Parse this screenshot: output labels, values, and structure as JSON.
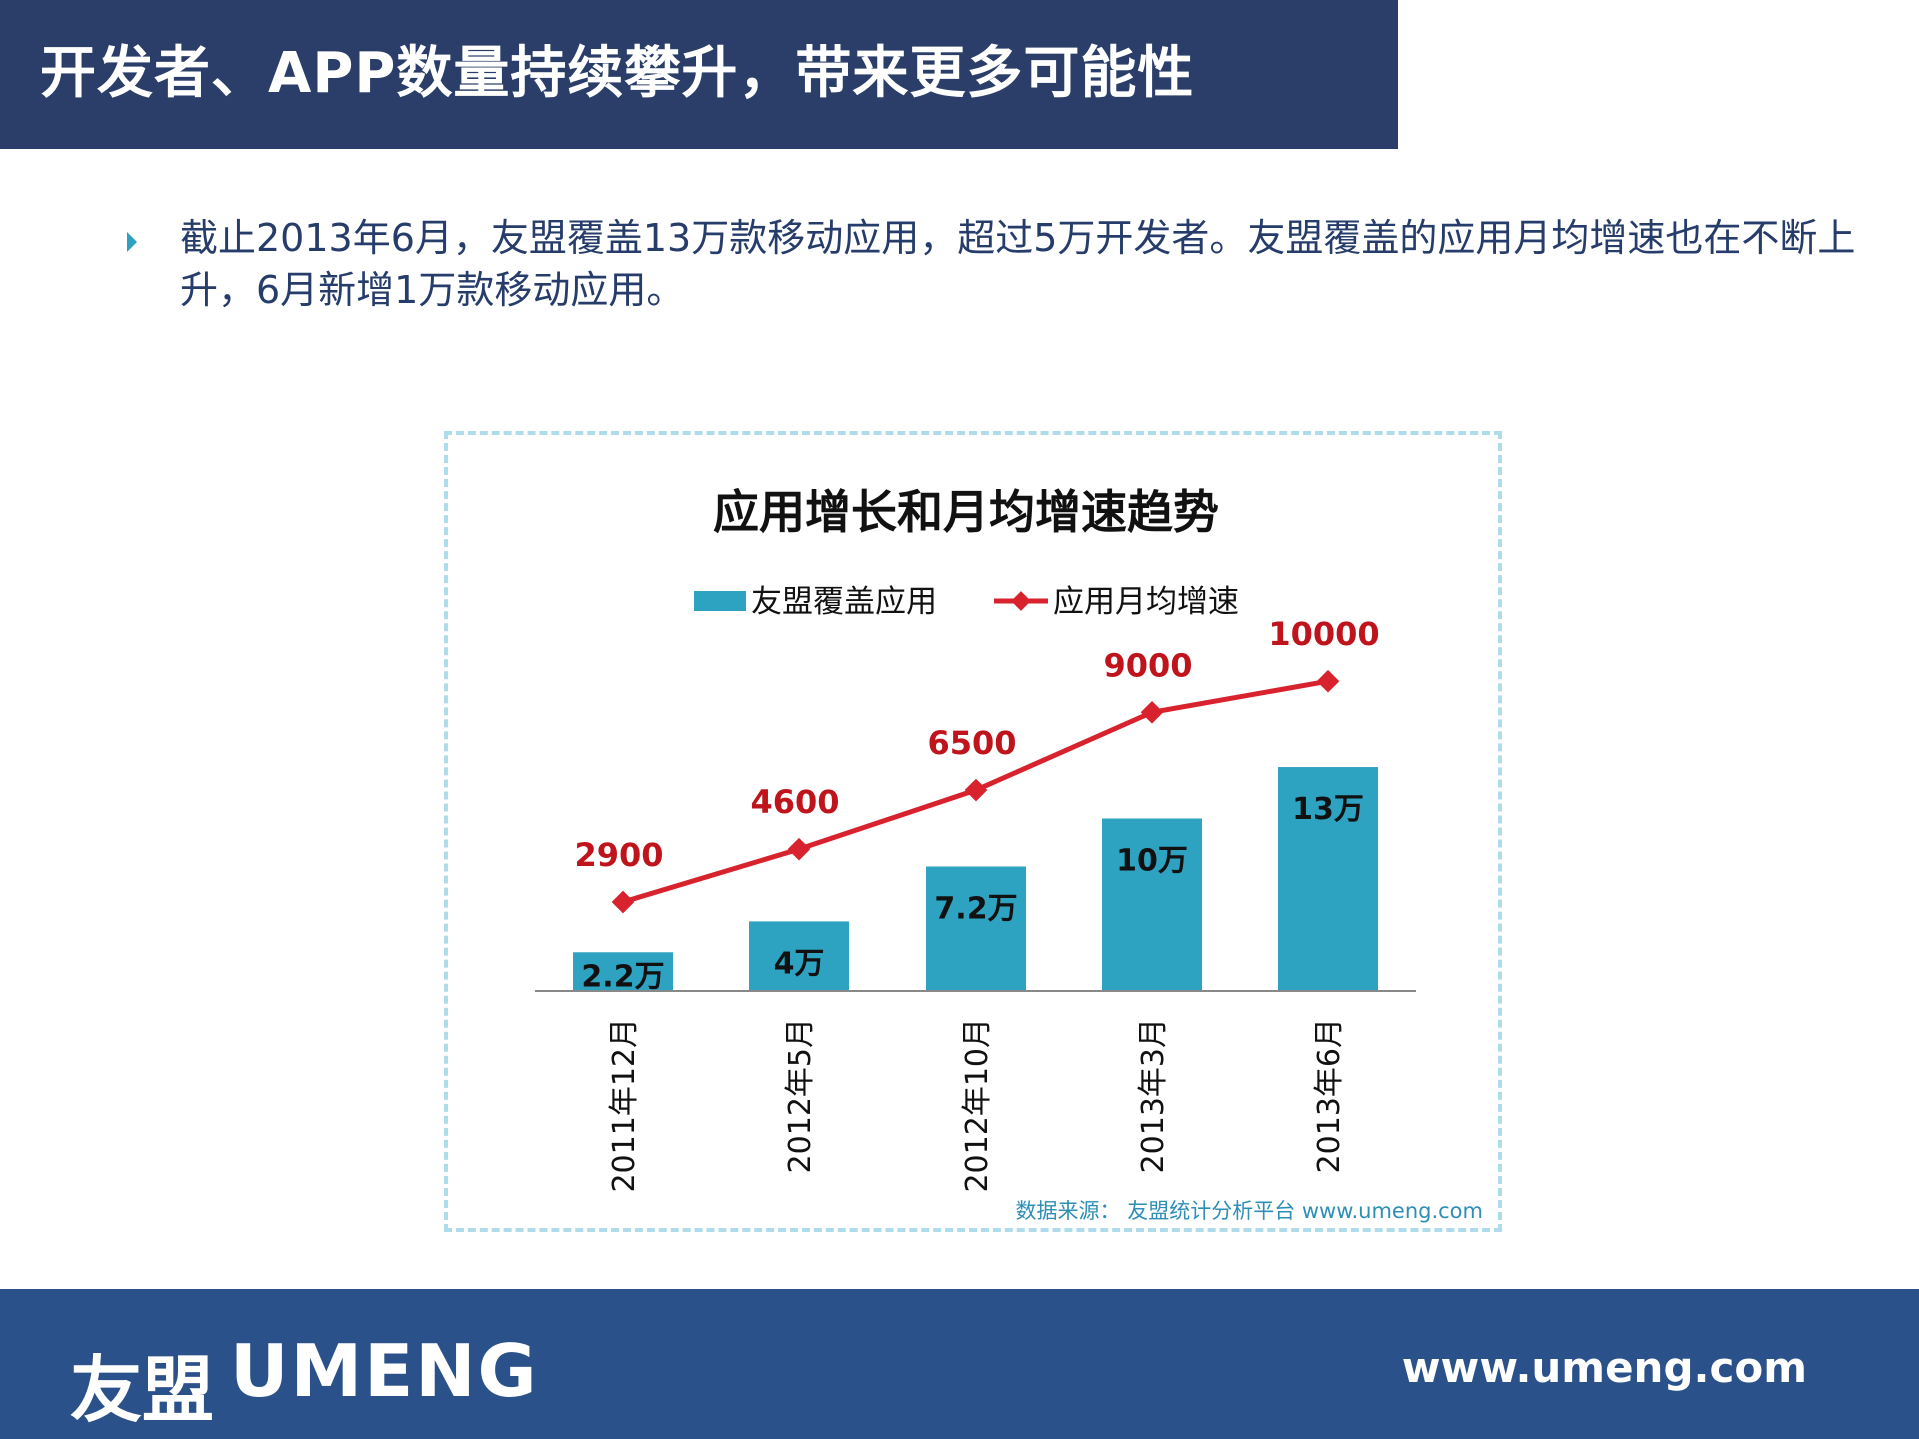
{
  "header": {
    "title": "开发者、APP数量持续攀升，带来更多可能性"
  },
  "bullet": {
    "text": "截止2013年6月，友盟覆盖13万款移动应用，超过5万开发者。友盟覆盖的应用月均增速也在不断上升，6月新增1万款移动应用。"
  },
  "chart_data": {
    "type": "bar+line",
    "title": "应用增长和月均增速趋势",
    "categories": [
      "2011年12月",
      "2012年5月",
      "2012年10月",
      "2013年3月",
      "2013年6月"
    ],
    "series": [
      {
        "name": "友盟覆盖应用",
        "type": "bar",
        "color": "#2da3c1",
        "values": [
          2.2,
          4,
          7.2,
          10,
          13
        ],
        "labels": [
          "2.2万",
          "4万",
          "7.2万",
          "10万",
          "13万"
        ]
      },
      {
        "name": "应用月均增速",
        "type": "line",
        "color": "#d8232e",
        "values": [
          2900,
          4600,
          6500,
          9000,
          10000
        ],
        "labels": [
          "2900",
          "4600",
          "6500",
          "9000",
          "10000"
        ]
      }
    ],
    "legend": "top",
    "grid": false,
    "source": "数据来源： 友盟统计分析平台 www.umeng.com"
  },
  "footer": {
    "logo_cn": "友盟",
    "logo_en": "UMENG",
    "url": "www.umeng.com"
  },
  "colors": {
    "header": "#2a3e69",
    "footer": "#2b518a",
    "bar": "#2da3c1",
    "line": "#d8232e",
    "label_red": "#c0141c"
  }
}
